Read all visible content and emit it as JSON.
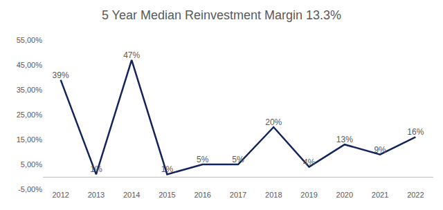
{
  "chart_data": {
    "type": "line",
    "title": "5 Year Median Reinvestment Margin 13.3%",
    "categories": [
      "2012",
      "2013",
      "2014",
      "2015",
      "2016",
      "2017",
      "2018",
      "2019",
      "2020",
      "2021",
      "2022"
    ],
    "values": [
      39,
      1,
      47,
      1,
      5,
      5,
      20,
      4,
      13,
      9,
      16
    ],
    "value_labels": [
      "39%",
      "1%",
      "47%",
      "1%",
      "5%",
      "5%",
      "20%",
      "4%",
      "13%",
      "9%",
      "16%"
    ],
    "color": "#13235b",
    "ylim": [
      -5,
      55
    ],
    "yticks": [
      {
        "value": -5,
        "label": "-5,00%"
      },
      {
        "value": 5,
        "label": "5,00%"
      },
      {
        "value": 15,
        "label": "15,00%"
      },
      {
        "value": 25,
        "label": "25,00%"
      },
      {
        "value": 35,
        "label": "35,00%"
      },
      {
        "value": 45,
        "label": "45,00%"
      },
      {
        "value": 55,
        "label": "55,00%"
      }
    ],
    "grid": false,
    "data_labels": true
  }
}
